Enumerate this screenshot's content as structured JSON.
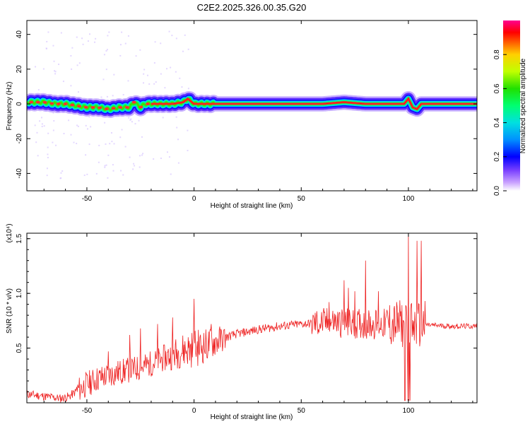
{
  "title": "C2E2.2025.326.00.35.G20",
  "chart_data": [
    {
      "type": "heatmap",
      "xlabel": "Height of straight line (km)",
      "ylabel": "Frequency (Hz)",
      "xlim": [
        -78,
        132
      ],
      "ylim": [
        -50,
        48
      ],
      "xticks": [
        -50,
        0,
        50,
        100
      ],
      "yticks": [
        -40,
        -20,
        0,
        20,
        40
      ],
      "colorbar": {
        "label": "Normalized spectral amplitude",
        "range": [
          0,
          1
        ],
        "ticks": [
          "0.0",
          "0.2",
          "0.4",
          "0.6",
          "0.8"
        ],
        "tick_values": [
          0.0,
          0.2,
          0.4,
          0.6,
          0.8
        ],
        "colormap": [
          "#ffffff",
          "#a070ff",
          "#0000ff",
          "#00c8ff",
          "#00ff80",
          "#00e000",
          "#c0ff00",
          "#ffff00",
          "#ff8000",
          "#ff0000",
          "#ff00a0"
        ]
      },
      "ridge": {
        "description_free": true,
        "x": [
          -78,
          -70,
          -65,
          -60,
          -55,
          -50,
          -45,
          -40,
          -35,
          -30,
          -28,
          -25,
          -23,
          -20,
          -10,
          -5,
          -3,
          0,
          5,
          10,
          50,
          60,
          70,
          80,
          90,
          98,
          100,
          102,
          104,
          106,
          110,
          132
        ],
        "y": [
          1,
          1,
          0,
          0,
          -1,
          -2,
          -2,
          -3,
          -2,
          -2,
          1,
          -2,
          0,
          0,
          0,
          1,
          3,
          0,
          0,
          0,
          0,
          0,
          1,
          0,
          0,
          0,
          3,
          -2,
          -3,
          0,
          0,
          0
        ]
      }
    },
    {
      "type": "line",
      "xlabel": "Height of straight line (km)",
      "ylabel": "SNR (10 * v/v)",
      "y_multiplier": "(x10⁴)",
      "xlim": [
        -78,
        132
      ],
      "ylim": [
        0,
        1.55
      ],
      "xticks": [
        -50,
        0,
        50,
        100
      ],
      "yticks": [
        0.5,
        1.0,
        1.5
      ],
      "ytick_labels": [
        "0.5",
        "1.0",
        "1.5"
      ],
      "color": "#ee2222",
      "envelope": {
        "x": [
          -78,
          -70,
          -62,
          -58,
          -54,
          -50,
          -45,
          -40,
          -35,
          -30,
          -25,
          -20,
          -15,
          -10,
          -5,
          0,
          5,
          10,
          15,
          20,
          30,
          40,
          50,
          60,
          65,
          70,
          75,
          80,
          85,
          90,
          95,
          98,
          100,
          102,
          104,
          106,
          110,
          120,
          132
        ],
        "y": [
          0.08,
          0.06,
          0.04,
          0.06,
          0.12,
          0.17,
          0.22,
          0.25,
          0.28,
          0.3,
          0.32,
          0.36,
          0.4,
          0.44,
          0.48,
          0.5,
          0.52,
          0.56,
          0.6,
          0.63,
          0.67,
          0.7,
          0.72,
          0.73,
          0.74,
          0.73,
          0.72,
          0.72,
          0.72,
          0.72,
          0.72,
          0.72,
          0.7,
          0.7,
          0.7,
          0.72,
          0.71,
          0.7,
          0.7
        ]
      },
      "spikes": [
        {
          "x": -40,
          "y": 0.47
        },
        {
          "x": -30,
          "y": 0.62
        },
        {
          "x": -25,
          "y": 0.68
        },
        {
          "x": -17,
          "y": 0.72
        },
        {
          "x": -10,
          "y": 0.78
        },
        {
          "x": 0,
          "y": 0.95
        },
        {
          "x": 8,
          "y": 0.72
        },
        {
          "x": 63,
          "y": 0.92
        },
        {
          "x": 70,
          "y": 1.12
        },
        {
          "x": 72,
          "y": 1.05
        },
        {
          "x": 75,
          "y": 1.02
        },
        {
          "x": 80,
          "y": 1.3
        },
        {
          "x": 86,
          "y": 1.02
        },
        {
          "x": 100,
          "y": 1.55
        },
        {
          "x": 104,
          "y": 1.48
        },
        {
          "x": 106,
          "y": 1.48
        }
      ]
    }
  ]
}
